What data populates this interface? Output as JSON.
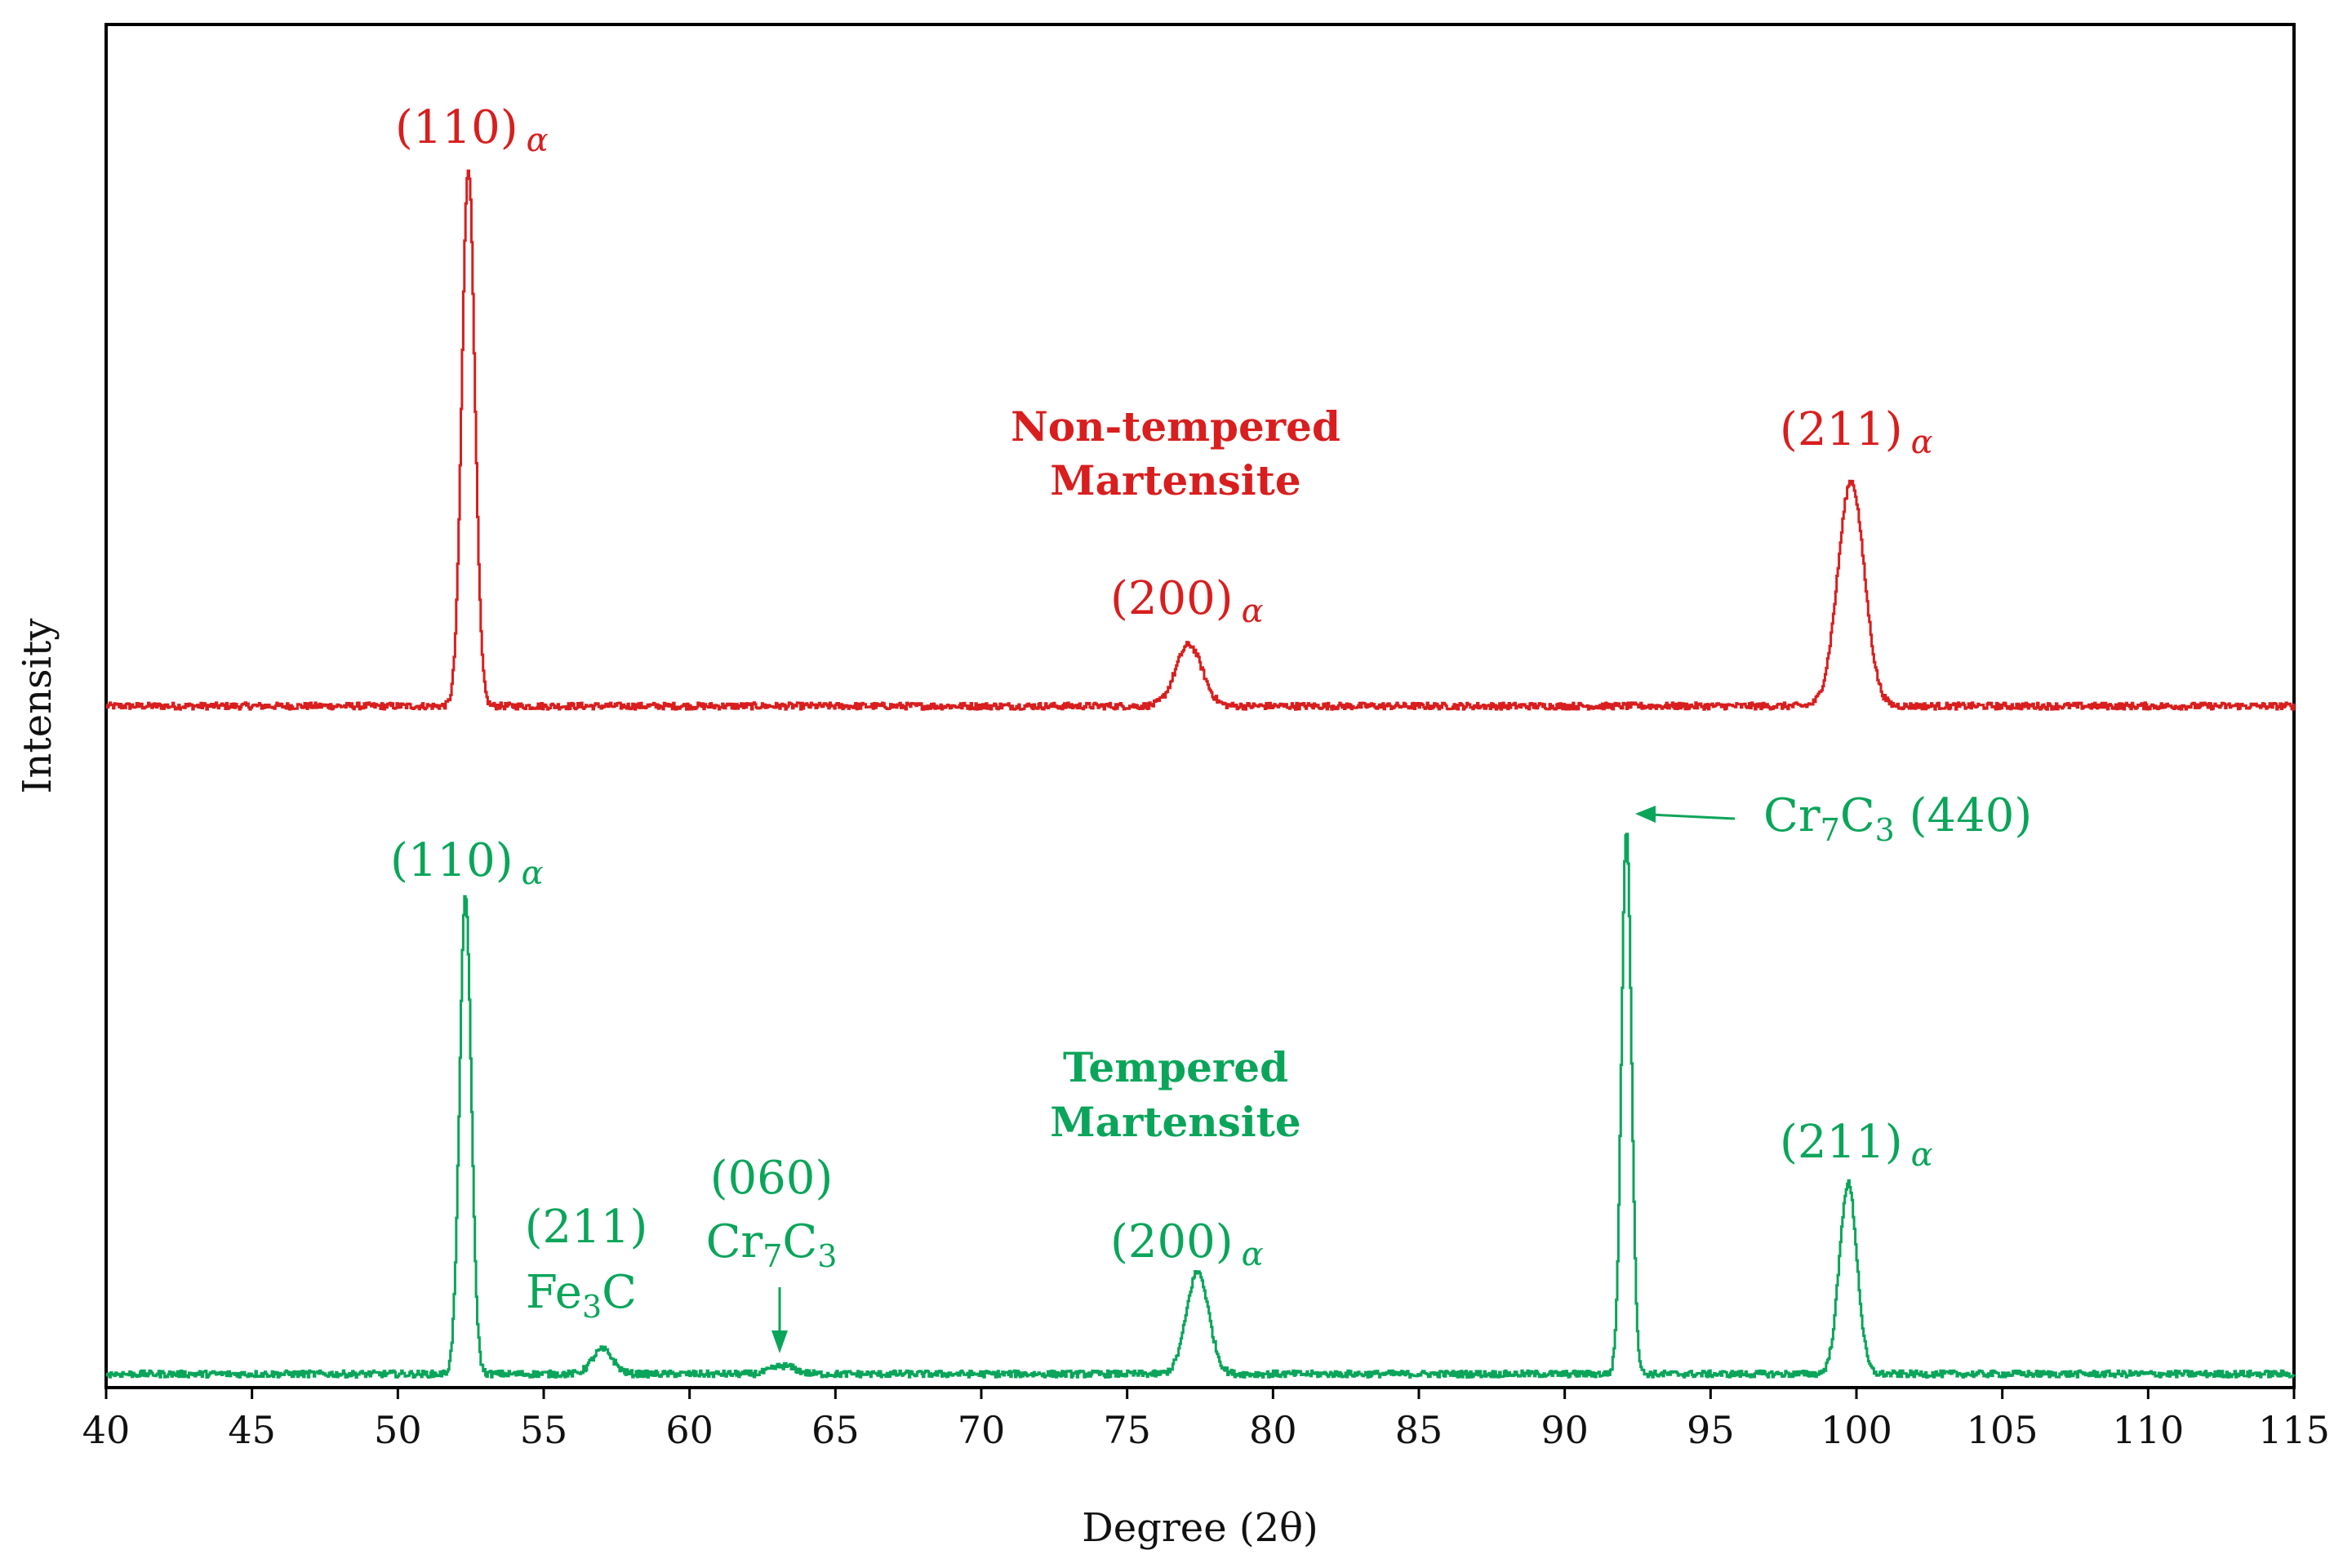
{
  "chart_data": {
    "type": "line",
    "xlabel": "Degree (2θ)",
    "ylabel": "Intensity",
    "xlim": [
      40,
      115
    ],
    "ylim": [
      0,
      1
    ],
    "x_ticks": [
      40,
      45,
      50,
      55,
      60,
      65,
      70,
      75,
      80,
      85,
      90,
      95,
      100,
      105,
      110,
      115
    ],
    "grid": false,
    "series": [
      {
        "name": "Non-tempered Martensite",
        "color": "#d81e1e",
        "title_lines": [
          "Non-tempered",
          "Martensite"
        ],
        "baseline": 0.5,
        "noise": 0.0025,
        "peaks": [
          {
            "x": 52.4,
            "height": 0.395,
            "width": 0.22
          },
          {
            "x": 77.1,
            "height": 0.045,
            "width": 0.45
          },
          {
            "x": 99.8,
            "height": 0.165,
            "width": 0.45
          }
        ],
        "labels": [
          {
            "text": "(110)",
            "suffix": "α",
            "x": 52.4
          },
          {
            "text": "(200)",
            "suffix": "α",
            "x": 77.1
          },
          {
            "text": "(211)",
            "suffix": "α",
            "x": 99.8
          }
        ]
      },
      {
        "name": "Tempered Martensite",
        "color": "#0aa55a",
        "title_lines": [
          "Tempered",
          "Martensite"
        ],
        "baseline": 0.01,
        "noise": 0.0025,
        "peaks": [
          {
            "x": 52.3,
            "height": 0.35,
            "width": 0.2
          },
          {
            "x": 57.0,
            "height": 0.018,
            "width": 0.35
          },
          {
            "x": 63.2,
            "height": 0.006,
            "width": 0.4
          },
          {
            "x": 77.4,
            "height": 0.075,
            "width": 0.38
          },
          {
            "x": 92.1,
            "height": 0.4,
            "width": 0.17
          },
          {
            "x": 99.7,
            "height": 0.14,
            "width": 0.3
          }
        ],
        "labels": [
          {
            "text": "(110)",
            "suffix": "α",
            "x": 52.3
          },
          {
            "text": "(211)",
            "line2": "Fe",
            "line2_sub": "3",
            "line2_end": "C",
            "x": 57.0
          },
          {
            "text": "(060)",
            "line2": "Cr",
            "line2_sub": "7",
            "line2_end": "C",
            "line2_sub2": "3",
            "x": 63.2
          },
          {
            "text": "(200)",
            "suffix": "α",
            "x": 77.4
          },
          {
            "text": "Cr",
            "sub": "7",
            "mid": "C",
            "sub2": "3",
            "end": " (440)",
            "x": 92.1
          },
          {
            "text": "(211)",
            "suffix": "α",
            "x": 99.7
          }
        ]
      }
    ]
  }
}
